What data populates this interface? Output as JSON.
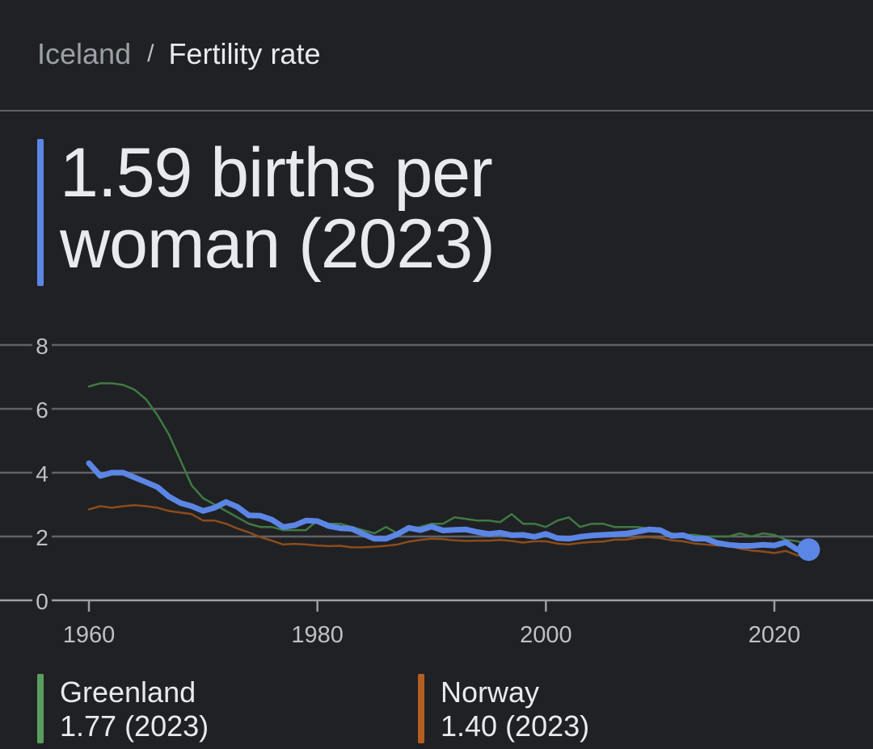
{
  "breadcrumb": {
    "parent": "Iceland",
    "separator": "/",
    "current": "Fertility rate"
  },
  "headline": {
    "text": "1.59 births per woman (2023)",
    "accent_color": "#5b86e5"
  },
  "legend": [
    {
      "name": "Greenland",
      "value": "1.77 (2023)",
      "color": "#5a9e5f"
    },
    {
      "name": "Norway",
      "value": "1.40 (2023)",
      "color": "#b35f23"
    }
  ],
  "chart_data": {
    "type": "line",
    "title": "",
    "xlabel": "",
    "ylabel": "",
    "xlim": [
      1956,
      2028
    ],
    "ylim": [
      0,
      8
    ],
    "x_ticks": [
      1960,
      1980,
      2000,
      2020
    ],
    "y_ticks": [
      0,
      2,
      4,
      6,
      8
    ],
    "grid": true,
    "x": [
      1960,
      1961,
      1962,
      1963,
      1964,
      1965,
      1966,
      1967,
      1968,
      1969,
      1970,
      1971,
      1972,
      1973,
      1974,
      1975,
      1976,
      1977,
      1978,
      1979,
      1980,
      1981,
      1982,
      1983,
      1984,
      1985,
      1986,
      1987,
      1988,
      1989,
      1990,
      1991,
      1992,
      1993,
      1994,
      1995,
      1996,
      1997,
      1998,
      1999,
      2000,
      2001,
      2002,
      2003,
      2004,
      2005,
      2006,
      2007,
      2008,
      2009,
      2010,
      2011,
      2012,
      2013,
      2014,
      2015,
      2016,
      2017,
      2018,
      2019,
      2020,
      2021,
      2022,
      2023
    ],
    "series": [
      {
        "name": "Greenland",
        "color": "#3f7a43",
        "values": [
          6.7,
          6.8,
          6.8,
          6.75,
          6.6,
          6.3,
          5.8,
          5.2,
          4.4,
          3.6,
          3.2,
          3.0,
          2.8,
          2.6,
          2.4,
          2.3,
          2.3,
          2.2,
          2.2,
          2.2,
          2.5,
          2.4,
          2.4,
          2.3,
          2.2,
          2.1,
          2.3,
          2.1,
          2.2,
          2.3,
          2.4,
          2.4,
          2.6,
          2.55,
          2.5,
          2.5,
          2.45,
          2.7,
          2.4,
          2.4,
          2.3,
          2.5,
          2.6,
          2.3,
          2.4,
          2.4,
          2.3,
          2.3,
          2.3,
          2.25,
          2.2,
          2.1,
          2.05,
          2.05,
          2.0,
          2.0,
          2.0,
          2.1,
          2.0,
          2.1,
          2.05,
          1.9,
          1.85,
          1.77
        ]
      },
      {
        "name": "Norway",
        "color": "#8c4c1c",
        "values": [
          2.85,
          2.95,
          2.9,
          2.95,
          2.98,
          2.95,
          2.9,
          2.8,
          2.75,
          2.7,
          2.5,
          2.5,
          2.4,
          2.25,
          2.13,
          1.98,
          1.87,
          1.75,
          1.77,
          1.75,
          1.72,
          1.7,
          1.71,
          1.66,
          1.66,
          1.68,
          1.71,
          1.75,
          1.84,
          1.89,
          1.93,
          1.92,
          1.88,
          1.86,
          1.87,
          1.87,
          1.89,
          1.86,
          1.81,
          1.85,
          1.85,
          1.78,
          1.75,
          1.8,
          1.83,
          1.84,
          1.9,
          1.9,
          1.96,
          1.98,
          1.95,
          1.88,
          1.85,
          1.78,
          1.75,
          1.72,
          1.71,
          1.62,
          1.56,
          1.53,
          1.48,
          1.55,
          1.41,
          1.4
        ]
      },
      {
        "name": "Iceland",
        "color": "#5b86e5",
        "values": [
          4.3,
          3.9,
          4.0,
          4.0,
          3.85,
          3.7,
          3.55,
          3.25,
          3.05,
          2.95,
          2.8,
          2.9,
          3.08,
          2.93,
          2.66,
          2.65,
          2.53,
          2.3,
          2.35,
          2.5,
          2.48,
          2.33,
          2.26,
          2.24,
          2.08,
          1.93,
          1.93,
          2.07,
          2.27,
          2.2,
          2.31,
          2.19,
          2.21,
          2.22,
          2.14,
          2.08,
          2.12,
          2.04,
          2.05,
          1.99,
          2.08,
          1.95,
          1.93,
          1.99,
          2.03,
          2.05,
          2.07,
          2.09,
          2.15,
          2.22,
          2.2,
          2.02,
          2.04,
          1.93,
          1.93,
          1.8,
          1.74,
          1.71,
          1.71,
          1.74,
          1.72,
          1.82,
          1.59,
          1.59
        ]
      }
    ]
  }
}
